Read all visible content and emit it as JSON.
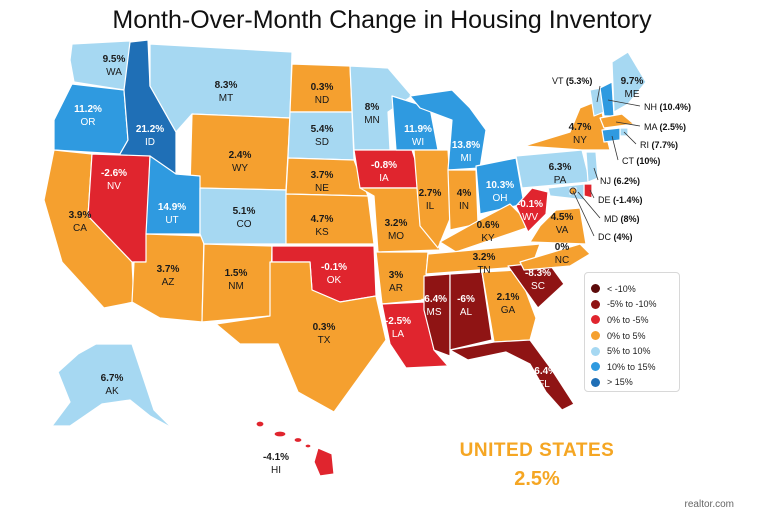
{
  "title": "Month-Over-Month Change in Housing Inventory",
  "colors": {
    "lt_neg10": "#5c0a0a",
    "neg5_neg10": "#8f1414",
    "neg0_neg5": "#e0252e",
    "0_5": "#f5a02f",
    "5_10": "#a6d8f2",
    "10_15": "#2f9ae0",
    "gt15": "#1f6fb6"
  },
  "legend": [
    {
      "label": "< -10%",
      "color": "#5c0a0a"
    },
    {
      "label": "-5% to -10%",
      "color": "#8f1414"
    },
    {
      "label": "0% to -5%",
      "color": "#e0252e"
    },
    {
      "label": "0% to 5%",
      "color": "#f5a02f"
    },
    {
      "label": "5% to 10%",
      "color": "#a6d8f2"
    },
    {
      "label": "10% to 15%",
      "color": "#2f9ae0"
    },
    {
      "label": "> 15%",
      "color": "#1f6fb6"
    }
  ],
  "states": [
    {
      "abbr": "WA",
      "value": "9.5%"
    },
    {
      "abbr": "OR",
      "value": "11.2%"
    },
    {
      "abbr": "CA",
      "value": "3.9%"
    },
    {
      "abbr": "ID",
      "value": "21.2%"
    },
    {
      "abbr": "NV",
      "value": "-2.6%"
    },
    {
      "abbr": "MT",
      "value": "8.3%"
    },
    {
      "abbr": "WY",
      "value": "2.4%"
    },
    {
      "abbr": "UT",
      "value": "14.9%"
    },
    {
      "abbr": "AZ",
      "value": "3.7%"
    },
    {
      "abbr": "CO",
      "value": "5.1%"
    },
    {
      "abbr": "NM",
      "value": "1.5%"
    },
    {
      "abbr": "ND",
      "value": "0.3%"
    },
    {
      "abbr": "SD",
      "value": "5.4%"
    },
    {
      "abbr": "NE",
      "value": "3.7%"
    },
    {
      "abbr": "KS",
      "value": "4.7%"
    },
    {
      "abbr": "OK",
      "value": "-0.1%"
    },
    {
      "abbr": "TX",
      "value": "0.3%"
    },
    {
      "abbr": "MN",
      "value": "8%"
    },
    {
      "abbr": "IA",
      "value": "-0.8%"
    },
    {
      "abbr": "MO",
      "value": "3.2%"
    },
    {
      "abbr": "AR",
      "value": "3%"
    },
    {
      "abbr": "LA",
      "value": "-2.5%"
    },
    {
      "abbr": "WI",
      "value": "11.9%"
    },
    {
      "abbr": "IL",
      "value": "2.7%"
    },
    {
      "abbr": "MS",
      "value": "-6.4%"
    },
    {
      "abbr": "MI",
      "value": "13.8%"
    },
    {
      "abbr": "IN",
      "value": "4%"
    },
    {
      "abbr": "KY",
      "value": "0.6%"
    },
    {
      "abbr": "TN",
      "value": "3.2%"
    },
    {
      "abbr": "AL",
      "value": "-6%"
    },
    {
      "abbr": "OH",
      "value": "10.3%"
    },
    {
      "abbr": "WV",
      "value": "-0.1%"
    },
    {
      "abbr": "VA",
      "value": "4.5%"
    },
    {
      "abbr": "NC",
      "value": "0%"
    },
    {
      "abbr": "SC",
      "value": "-8.3%"
    },
    {
      "abbr": "GA",
      "value": "2.1%"
    },
    {
      "abbr": "FL",
      "value": "-6.4%"
    },
    {
      "abbr": "PA",
      "value": "6.3%"
    },
    {
      "abbr": "NY",
      "value": "4.7%"
    },
    {
      "abbr": "ME",
      "value": "9.7%"
    },
    {
      "abbr": "AK",
      "value": "6.7%"
    },
    {
      "abbr": "HI",
      "value": "-4.1%"
    }
  ],
  "callouts": [
    {
      "abbr": "VT",
      "value": "(5.3%)"
    },
    {
      "abbr": "NH",
      "value": "(10.4%)"
    },
    {
      "abbr": "MA",
      "value": "(2.5%)"
    },
    {
      "abbr": "RI",
      "value": "(7.7%)"
    },
    {
      "abbr": "CT",
      "value": "(10%)"
    },
    {
      "abbr": "NJ",
      "value": "(6.2%)"
    },
    {
      "abbr": "DE",
      "value": "(-1.4%)"
    },
    {
      "abbr": "MD",
      "value": "(8%)"
    },
    {
      "abbr": "DC",
      "value": "(4%)"
    }
  ],
  "us_total": {
    "label": "UNITED STATES",
    "value": "2.5%"
  },
  "source": "realtor.com"
}
